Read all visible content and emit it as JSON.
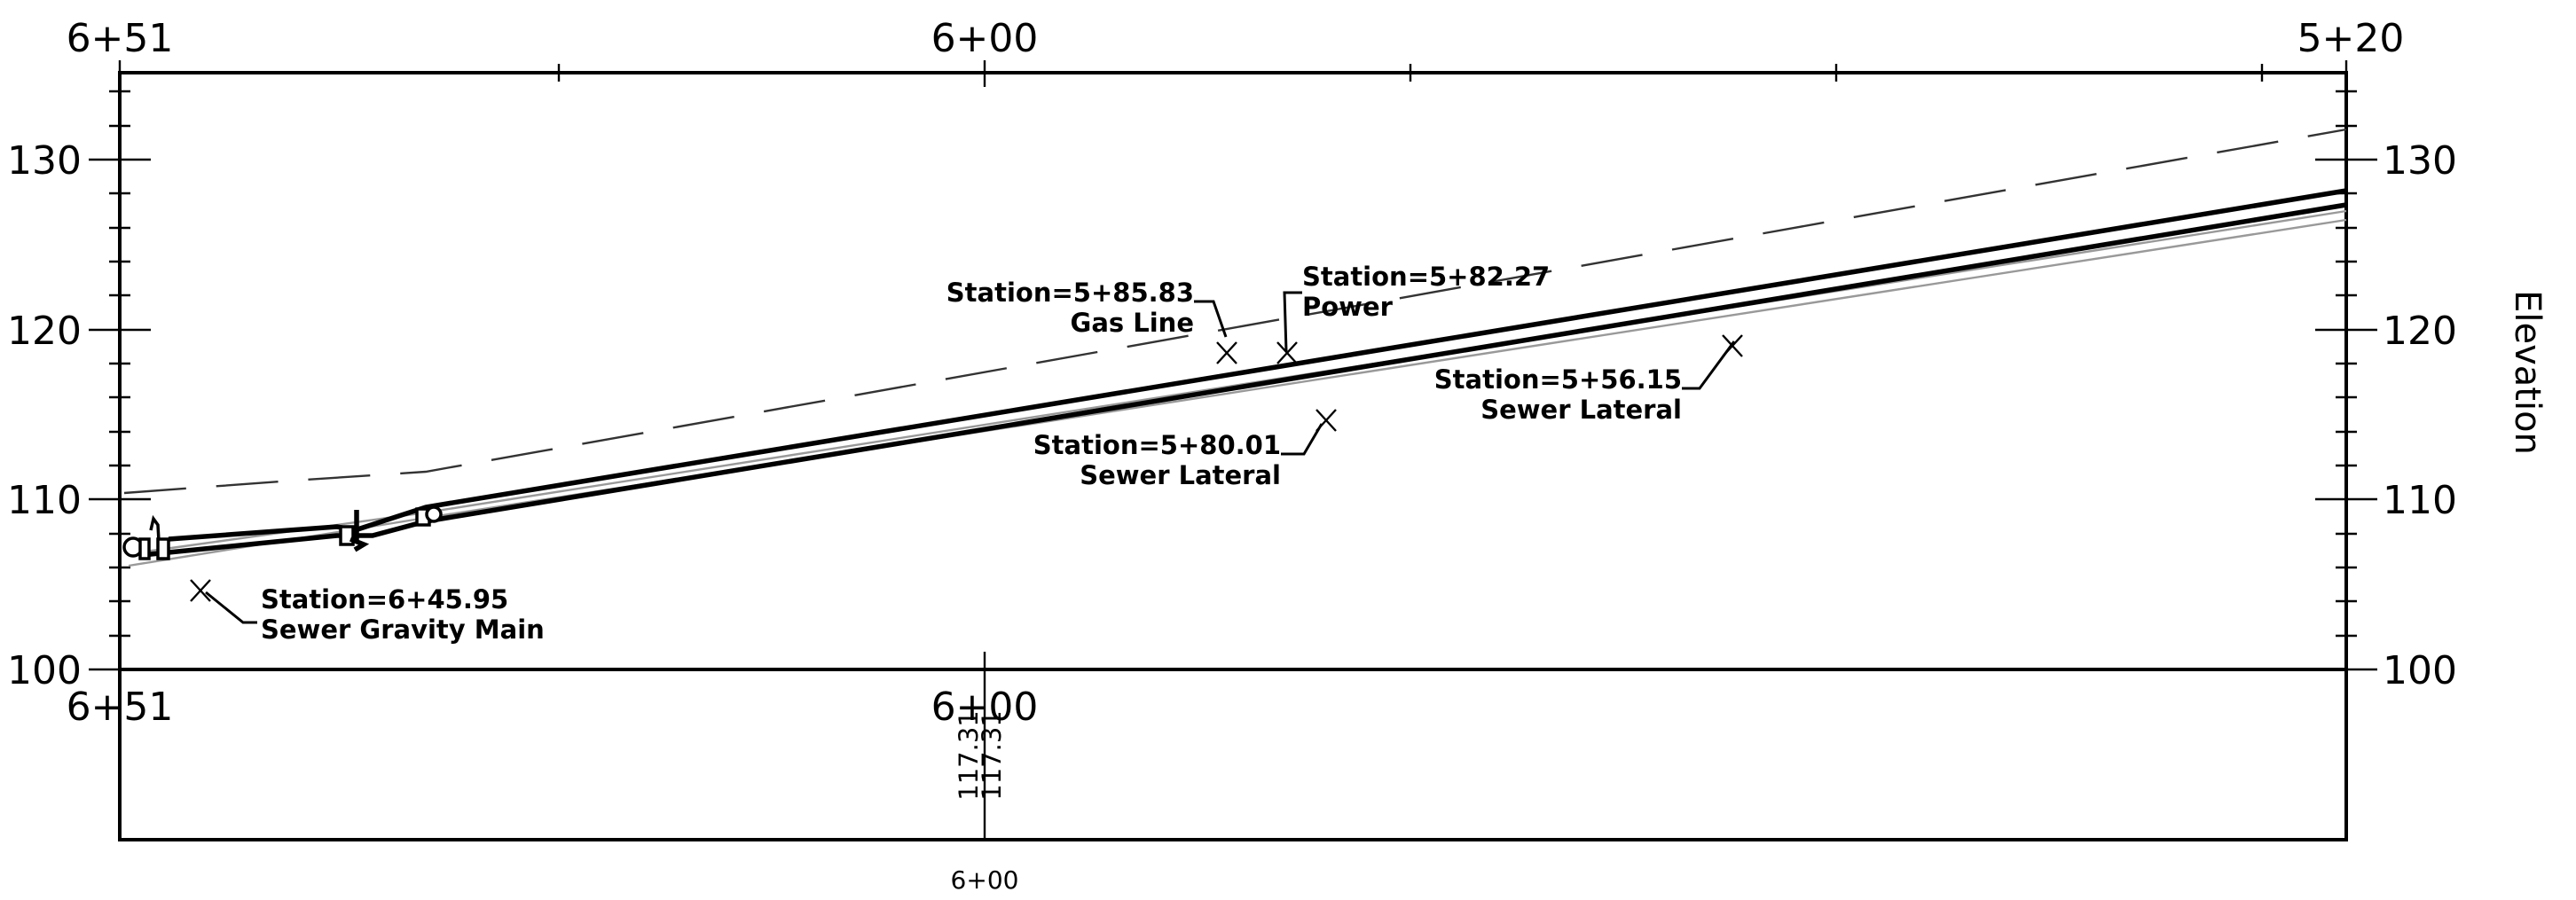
{
  "top_stations": [
    "6+51",
    "6+00",
    "5+20"
  ],
  "bottom_stations": [
    "6+51",
    "6+00"
  ],
  "elevations_left": [
    "130",
    "120",
    "110",
    "100"
  ],
  "elevations_right": [
    "130",
    "120",
    "110",
    "100"
  ],
  "axis_title": "Elevation",
  "callouts": {
    "gas_line": {
      "station": "Station=5+85.83",
      "name": "Gas Line"
    },
    "power": {
      "station": "Station=5+82.27",
      "name": "Power"
    },
    "sewer_lateral_1": {
      "station": "Station=5+80.01",
      "name": "Sewer Lateral"
    },
    "sewer_lateral_2": {
      "station": "Station=5+56.15",
      "name": "Sewer Lateral"
    },
    "sewer_main": {
      "station": "Station=6+45.95",
      "name": "Sewer Gravity Main"
    }
  },
  "band_values": [
    "117.31",
    "117.31"
  ],
  "bottom_station_label": "6+00"
}
